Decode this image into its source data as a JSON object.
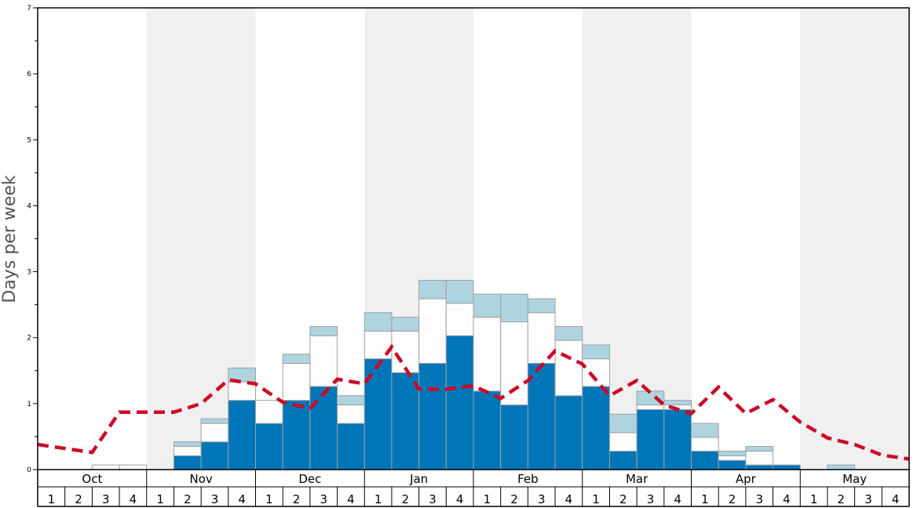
{
  "chart_data": {
    "type": "bar",
    "stacked": true,
    "ylabel": "Days per week",
    "ylim": [
      0,
      7
    ],
    "yticks": [
      "0",
      "1",
      "2",
      "3",
      "4",
      "5",
      "6",
      "7"
    ],
    "months": [
      "Oct",
      "Nov",
      "Dec",
      "Jan",
      "Feb",
      "Mar",
      "Apr",
      "May"
    ],
    "week_labels": [
      "1",
      "2",
      "3",
      "4"
    ],
    "colors": {
      "deep": "#0075b8",
      "light": "#fdfdfd",
      "slight": "#aed4e0",
      "average_line": "#cc0a25",
      "band_shade": "#f0f0f0",
      "bar_edge": "#a0a0a0"
    },
    "series": [
      {
        "name": "deep",
        "values": [
          0,
          0,
          0,
          0,
          0,
          0.21,
          0.42,
          1.05,
          0.7,
          1.05,
          1.26,
          0.7,
          1.68,
          1.47,
          1.61,
          2.03,
          1.19,
          0.98,
          1.61,
          1.12,
          1.26,
          0.28,
          0.91,
          0.91,
          0.28,
          0.14,
          0.07,
          0.07,
          0,
          0,
          0,
          0
        ]
      },
      {
        "name": "light",
        "values": [
          0,
          0,
          0.07,
          0.07,
          0,
          0.14,
          0.28,
          0.28,
          0.35,
          0.56,
          0.77,
          0.28,
          0.42,
          0.63,
          0.98,
          0.49,
          1.12,
          1.26,
          0.77,
          0.84,
          0.42,
          0.28,
          0.07,
          0.07,
          0.21,
          0.07,
          0.21,
          0,
          0,
          0,
          0,
          0
        ]
      },
      {
        "name": "slight",
        "values": [
          0,
          0,
          0,
          0,
          0,
          0.07,
          0.07,
          0.21,
          0,
          0.14,
          0.14,
          0.14,
          0.28,
          0.21,
          0.28,
          0.35,
          0.35,
          0.42,
          0.21,
          0.21,
          0.21,
          0.28,
          0.21,
          0.07,
          0.21,
          0.07,
          0.07,
          0,
          0,
          0.07,
          0,
          0
        ]
      }
    ],
    "average": [
      0.38,
      0.32,
      0.26,
      0.87,
      0.87,
      0.87,
      1.0,
      1.36,
      1.3,
      1.02,
      0.93,
      1.37,
      1.3,
      1.86,
      1.22,
      1.22,
      1.27,
      1.08,
      1.35,
      1.8,
      1.6,
      1.12,
      1.35,
      0.98,
      0.85,
      1.25,
      0.85,
      1.06,
      0.72,
      0.48,
      0.38,
      0.22,
      0.16
    ]
  }
}
